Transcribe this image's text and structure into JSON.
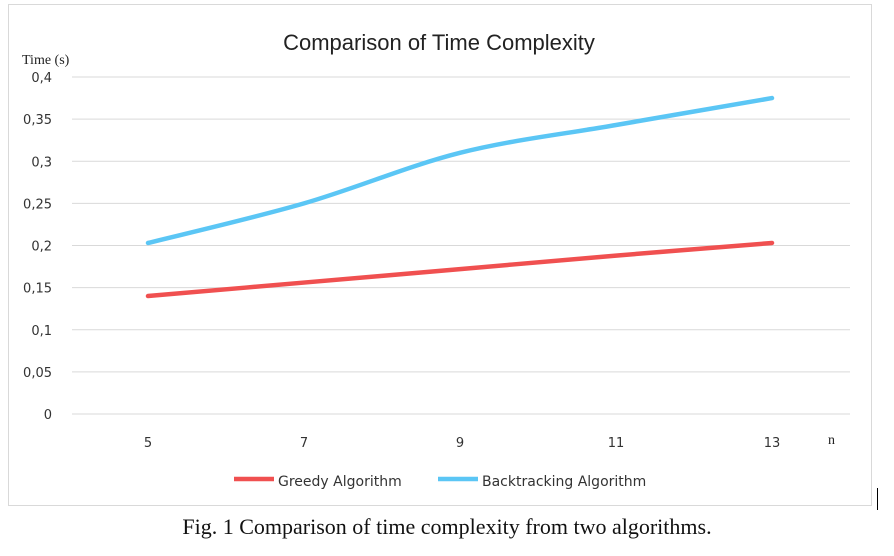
{
  "chart_data": {
    "type": "line",
    "title": "Comparison of Time Complexity",
    "ylabel": "Time (s)",
    "xlabel": "n",
    "categories": [
      "5",
      "7",
      "9",
      "11",
      "13"
    ],
    "y_ticks": [
      "0",
      "0,05",
      "0,1",
      "0,15",
      "0,2",
      "0,25",
      "0,3",
      "0,35",
      "0,4"
    ],
    "ylim": [
      0,
      0.4
    ],
    "grid": true,
    "legend_position": "bottom",
    "series": [
      {
        "name": "Greedy Algorithm",
        "color": "#f05050",
        "values": [
          0.14,
          0.156,
          0.172,
          0.188,
          0.203
        ]
      },
      {
        "name": "Backtracking Algorithm",
        "color": "#5bc6f5",
        "values": [
          0.203,
          0.25,
          0.31,
          0.343,
          0.375
        ]
      }
    ]
  },
  "caption": "Fig. 1 Comparison of time complexity from two algorithms."
}
